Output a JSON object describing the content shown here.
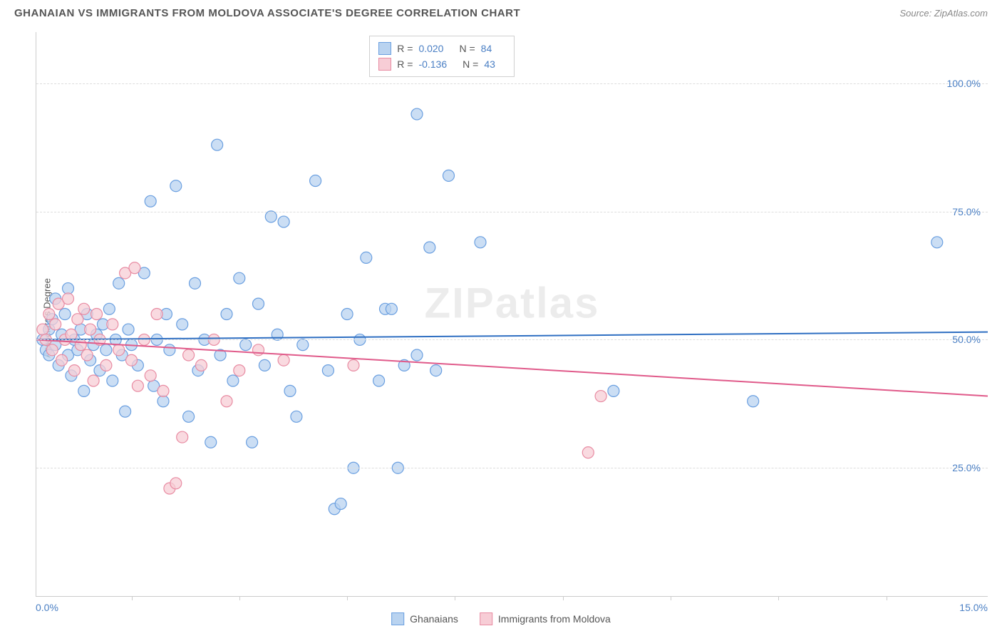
{
  "header": {
    "title": "GHANAIAN VS IMMIGRANTS FROM MOLDOVA ASSOCIATE'S DEGREE CORRELATION CHART",
    "source_prefix": "Source: ",
    "source": "ZipAtlas.com"
  },
  "ylabel": "Associate's Degree",
  "watermark": "ZIPatlas",
  "chart": {
    "type": "scatter",
    "background_color": "#ffffff",
    "grid_color": "#dddddd",
    "axis_color": "#cccccc",
    "text_color": "#555555",
    "value_color": "#4a7fc4",
    "xlim": [
      0,
      15
    ],
    "ylim": [
      0,
      110
    ],
    "yticks": [
      {
        "v": 25,
        "label": "25.0%"
      },
      {
        "v": 50,
        "label": "50.0%"
      },
      {
        "v": 75,
        "label": "75.0%"
      },
      {
        "v": 100,
        "label": "100.0%"
      }
    ],
    "xticks_minor": [
      1.5,
      3.2,
      4.9,
      6.6,
      8.3,
      10.0,
      11.7,
      13.4
    ],
    "xaxis_labels": [
      {
        "v": 0,
        "label": "0.0%",
        "align": "left"
      },
      {
        "v": 15,
        "label": "15.0%",
        "align": "right"
      }
    ],
    "series": [
      {
        "name": "Ghanaians",
        "color_fill": "#b9d3f0",
        "color_stroke": "#6a9fe0",
        "marker_radius": 8,
        "trend": {
          "y_at_xmin": 50,
          "y_at_xmax": 51.5,
          "color": "#2f6fc2",
          "width": 2
        },
        "stats": {
          "R": "0.020",
          "N": "84"
        },
        "points": [
          [
            0.1,
            50
          ],
          [
            0.15,
            48
          ],
          [
            0.2,
            52
          ],
          [
            0.2,
            47
          ],
          [
            0.25,
            54
          ],
          [
            0.3,
            49
          ],
          [
            0.3,
            58
          ],
          [
            0.35,
            45
          ],
          [
            0.4,
            51
          ],
          [
            0.45,
            55
          ],
          [
            0.5,
            47
          ],
          [
            0.5,
            60
          ],
          [
            0.55,
            43
          ],
          [
            0.6,
            50
          ],
          [
            0.65,
            48
          ],
          [
            0.7,
            52
          ],
          [
            0.75,
            40
          ],
          [
            0.8,
            55
          ],
          [
            0.85,
            46
          ],
          [
            0.9,
            49
          ],
          [
            0.95,
            51
          ],
          [
            1.0,
            44
          ],
          [
            1.05,
            53
          ],
          [
            1.1,
            48
          ],
          [
            1.15,
            56
          ],
          [
            1.2,
            42
          ],
          [
            1.25,
            50
          ],
          [
            1.3,
            61
          ],
          [
            1.35,
            47
          ],
          [
            1.4,
            36
          ],
          [
            1.45,
            52
          ],
          [
            1.5,
            49
          ],
          [
            1.6,
            45
          ],
          [
            1.7,
            63
          ],
          [
            1.8,
            77
          ],
          [
            1.85,
            41
          ],
          [
            1.9,
            50
          ],
          [
            2.0,
            38
          ],
          [
            2.05,
            55
          ],
          [
            2.1,
            48
          ],
          [
            2.2,
            80
          ],
          [
            2.3,
            53
          ],
          [
            2.4,
            35
          ],
          [
            2.5,
            61
          ],
          [
            2.55,
            44
          ],
          [
            2.65,
            50
          ],
          [
            2.75,
            30
          ],
          [
            2.85,
            88
          ],
          [
            2.9,
            47
          ],
          [
            3.0,
            55
          ],
          [
            3.1,
            42
          ],
          [
            3.2,
            62
          ],
          [
            3.3,
            49
          ],
          [
            3.4,
            30
          ],
          [
            3.5,
            57
          ],
          [
            3.6,
            45
          ],
          [
            3.7,
            74
          ],
          [
            3.8,
            51
          ],
          [
            3.9,
            73
          ],
          [
            4.0,
            40
          ],
          [
            4.1,
            35
          ],
          [
            4.2,
            49
          ],
          [
            4.4,
            81
          ],
          [
            4.6,
            44
          ],
          [
            4.7,
            17
          ],
          [
            4.8,
            18
          ],
          [
            4.9,
            55
          ],
          [
            5.0,
            25
          ],
          [
            5.1,
            50
          ],
          [
            5.2,
            66
          ],
          [
            5.4,
            42
          ],
          [
            5.5,
            56
          ],
          [
            5.6,
            56
          ],
          [
            5.7,
            25
          ],
          [
            5.8,
            45
          ],
          [
            6.0,
            94
          ],
          [
            6.0,
            47
          ],
          [
            6.2,
            68
          ],
          [
            6.3,
            44
          ],
          [
            6.5,
            82
          ],
          [
            7.0,
            69
          ],
          [
            9.1,
            40
          ],
          [
            11.3,
            38
          ],
          [
            14.2,
            69
          ]
        ]
      },
      {
        "name": "Immigrants from Moldova",
        "color_fill": "#f7cdd6",
        "color_stroke": "#e88ba2",
        "marker_radius": 8,
        "trend": {
          "y_at_xmin": 50,
          "y_at_xmax": 39,
          "color": "#e05a8a",
          "width": 2
        },
        "stats": {
          "R": "-0.136",
          "N": "43"
        },
        "points": [
          [
            0.1,
            52
          ],
          [
            0.15,
            50
          ],
          [
            0.2,
            55
          ],
          [
            0.25,
            48
          ],
          [
            0.3,
            53
          ],
          [
            0.35,
            57
          ],
          [
            0.4,
            46
          ],
          [
            0.45,
            50
          ],
          [
            0.5,
            58
          ],
          [
            0.55,
            51
          ],
          [
            0.6,
            44
          ],
          [
            0.65,
            54
          ],
          [
            0.7,
            49
          ],
          [
            0.75,
            56
          ],
          [
            0.8,
            47
          ],
          [
            0.85,
            52
          ],
          [
            0.9,
            42
          ],
          [
            0.95,
            55
          ],
          [
            1.0,
            50
          ],
          [
            1.1,
            45
          ],
          [
            1.2,
            53
          ],
          [
            1.3,
            48
          ],
          [
            1.4,
            63
          ],
          [
            1.5,
            46
          ],
          [
            1.55,
            64
          ],
          [
            1.6,
            41
          ],
          [
            1.7,
            50
          ],
          [
            1.8,
            43
          ],
          [
            1.9,
            55
          ],
          [
            2.0,
            40
          ],
          [
            2.1,
            21
          ],
          [
            2.2,
            22
          ],
          [
            2.3,
            31
          ],
          [
            2.4,
            47
          ],
          [
            2.6,
            45
          ],
          [
            2.8,
            50
          ],
          [
            3.0,
            38
          ],
          [
            3.2,
            44
          ],
          [
            3.5,
            48
          ],
          [
            3.9,
            46
          ],
          [
            5.0,
            45
          ],
          [
            8.7,
            28
          ],
          [
            8.9,
            39
          ]
        ]
      }
    ]
  },
  "legend_top": {
    "r_label": "R =",
    "n_label": "N ="
  },
  "legend_bottom": [
    {
      "label": "Ghanaians",
      "fill": "#b9d3f0",
      "stroke": "#6a9fe0"
    },
    {
      "label": "Immigrants from Moldova",
      "fill": "#f7cdd6",
      "stroke": "#e88ba2"
    }
  ]
}
